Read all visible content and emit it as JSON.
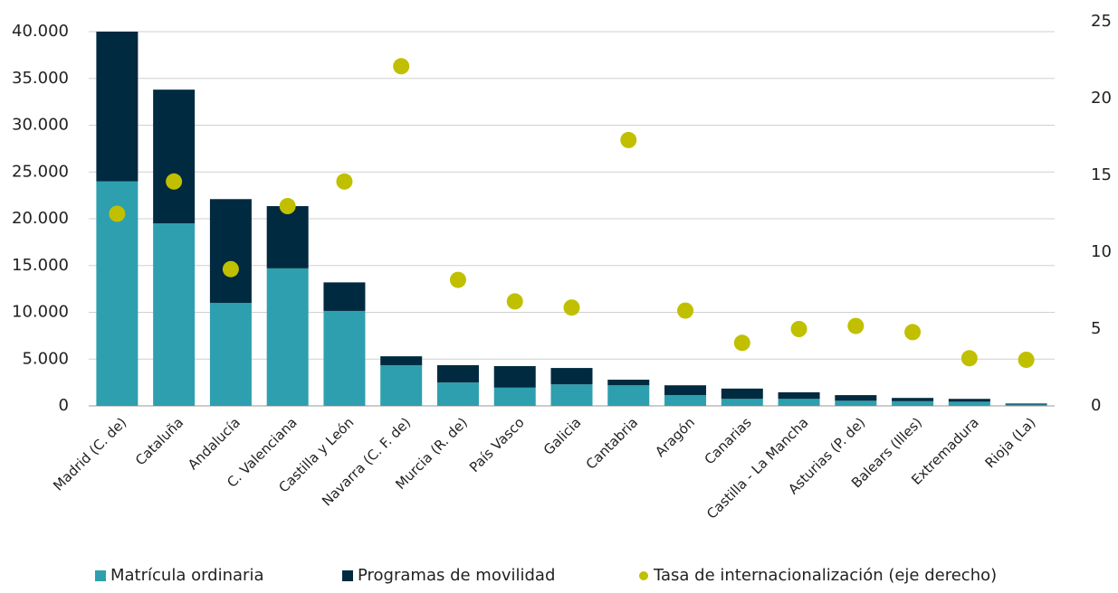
{
  "chart_data": {
    "type": "bar",
    "stacked": true,
    "categories": [
      "Madrid (C. de)",
      "Cataluña",
      "Andalucía",
      "C. Valenciana",
      "Castilla y León",
      "Navarra (C. F. de)",
      "Murcia (R. de)",
      "País Vasco",
      "Galicia",
      "Cantabria",
      "Aragón",
      "Canarias",
      "Castilla - La Mancha",
      "Asturias (P. de)",
      "Balears (Illes)",
      "Extremadura",
      "Rioja (La)"
    ],
    "series": [
      {
        "name": "Matrícula ordinaria",
        "color": "#2e9fae",
        "values": [
          24000,
          19500,
          11000,
          14700,
          10150,
          4350,
          2500,
          1950,
          2300,
          2200,
          1150,
          750,
          750,
          550,
          500,
          450,
          150
        ]
      },
      {
        "name": "Programas de movilidad",
        "color": "#002a40",
        "values": [
          16000,
          14300,
          11100,
          6650,
          3050,
          950,
          1850,
          2300,
          1750,
          600,
          1050,
          1100,
          700,
          600,
          350,
          300,
          100
        ]
      },
      {
        "name": "Tasa de internacionalización (eje derecho)",
        "color": "#c0c000",
        "type": "scatter",
        "axis": "y2",
        "values": [
          12.5,
          14.6,
          8.9,
          13.0,
          14.6,
          22.1,
          8.2,
          6.8,
          6.4,
          17.3,
          6.2,
          4.1,
          5.0,
          5.2,
          4.8,
          3.1,
          3.0
        ]
      }
    ],
    "ylim": [
      0,
      40000
    ],
    "yticks": [
      0,
      {
        "value": 5000,
        "label": "5.000"
      },
      {
        "value": 10000,
        "label": "10.000"
      },
      {
        "value": 15000,
        "label": "15.000"
      },
      {
        "value": 20000,
        "label": "20.000"
      },
      {
        "value": 25000,
        "label": "25.000"
      },
      {
        "value": 30000,
        "label": "30.000"
      },
      {
        "value": 35000,
        "label": "35.000"
      },
      {
        "value": 40000,
        "label": "40.000"
      }
    ],
    "y2lim": [
      0,
      25
    ],
    "y2ticks": [
      0,
      5,
      10,
      15,
      20,
      25
    ],
    "grid": true,
    "legend": "bottom"
  }
}
